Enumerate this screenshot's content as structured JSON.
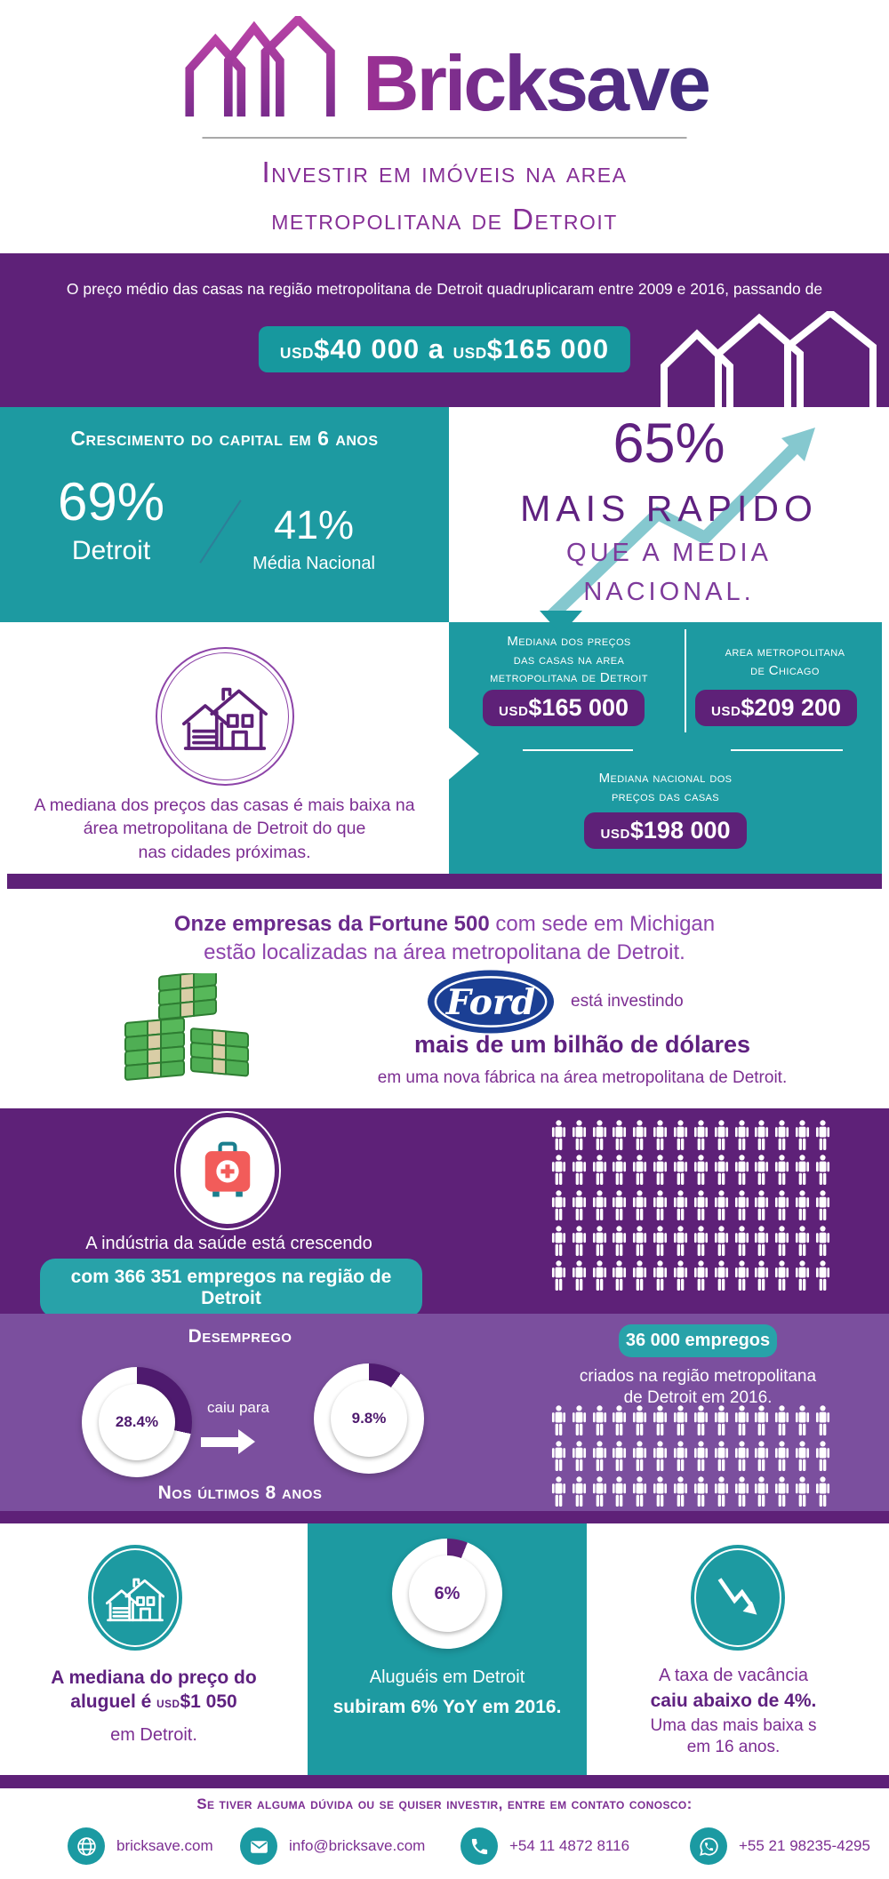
{
  "colors": {
    "dark_purple": "#5e2178",
    "light_purple": "#7b4f9e",
    "teal": "#1d9aa1",
    "teal_pill": "#28a2a9",
    "purple_text": "#7c2e92",
    "arrow_teal": "#85c8cf",
    "ford_blue": "#1b3f94",
    "wedge_purple": "#4e1a6e"
  },
  "header": {
    "brand": "Bricksave",
    "title_line1": "Investir em imóveis na area",
    "title_line2": "metropolitana de Detroit"
  },
  "intro": {
    "text": "O preço médio das casas na região metropolitana de Detroit quadruplicaram entre 2009 e 2016, passando de",
    "pill": {
      "usd1": "USD",
      "amt1": "$40 000",
      "mid": " a ",
      "usd2": "USD",
      "amt2": "$165 000"
    }
  },
  "growth": {
    "heading": "Crescimento do capital em 6 anos",
    "detroit_pct": "69%",
    "detroit_label": "Detroit",
    "national_pct": "41%",
    "national_label": "Média Nacional",
    "faster_pct": "65%",
    "faster_line1": "MAIS RAPIDO",
    "faster_line2": "QUE A MEDIA",
    "faster_line3": "NACIONAL."
  },
  "median": {
    "caption": [
      "A mediana dos preços das casas é mais baixa na",
      "área metropolitana de Detroit do que",
      "nas cidades próximas."
    ],
    "detroit": {
      "label1": "Mediana dos preços",
      "label2": "das casas na area",
      "label3": "metropolitana de Detroit",
      "usd": "USD",
      "amount": "$165 000"
    },
    "chicago": {
      "label1": "area metropolitana",
      "label2": "de Chicago",
      "usd": "USD",
      "amount": "$209 200"
    },
    "national": {
      "label1": "Mediana nacional dos",
      "label2": "preços das casas",
      "usd": "USD",
      "amount": "$198 000"
    }
  },
  "fortune": {
    "line1_bold": "Onze empresas da Fortune 500",
    "line1_rest": " com sede em Michigan",
    "line2": "estão localizadas na área metropolitana de Detroit.",
    "ford_label": "Ford",
    "investing": "está investindo",
    "billion": "mais de um bilhão de dólares",
    "factory": "em uma nova fábrica na área metropolitana de Detroit."
  },
  "health": {
    "caption": "A indústria da saúde está crescendo",
    "pill": "com 366 351 empregos na região de Detroit",
    "grid": {
      "columns": 14,
      "rows": 5,
      "total": 70
    }
  },
  "unemployment": {
    "heading": "Desemprego",
    "before_pct": "28.4%",
    "before_value": 28.4,
    "fell_to": "caiu para",
    "after_pct": "9.8%",
    "after_value": 9.8,
    "footnote": "Nos últimos 8 anos",
    "jobs_pill": "36 000 empregos",
    "jobs_line1": "criados na região metropolitana",
    "jobs_line2": "de Detroit em 2016.",
    "grid": {
      "columns": 14,
      "rows": 3,
      "total": 42
    }
  },
  "bottom": {
    "rent": {
      "line1": "A mediana do preço do",
      "line2_pre": "aluguel é ",
      "line2_usd": "USD",
      "line2_amt": "$1 050",
      "line3": "em Detroit."
    },
    "rents": {
      "donut_label": "6%",
      "value": 6,
      "line1": "Aluguéis em Detroit",
      "line2": "subiram 6% YoY em 2016."
    },
    "vacancy": {
      "line1": "A taxa de vacância",
      "line2": "caiu abaixo de 4%.",
      "line3": "Uma das mais baixa s",
      "line4": "em 16 anos."
    }
  },
  "footer": {
    "heading": "Se tiver alguma dúvida ou se quiser investir, entre em contato conosco:",
    "contacts": [
      {
        "icon": "globe",
        "label": "bricksave.com"
      },
      {
        "icon": "email",
        "label": "info@bricksave.com"
      },
      {
        "icon": "phone",
        "label": "+54 11 4872 8116"
      },
      {
        "icon": "whatsapp",
        "label": "+55 21 98235-4295"
      }
    ]
  }
}
